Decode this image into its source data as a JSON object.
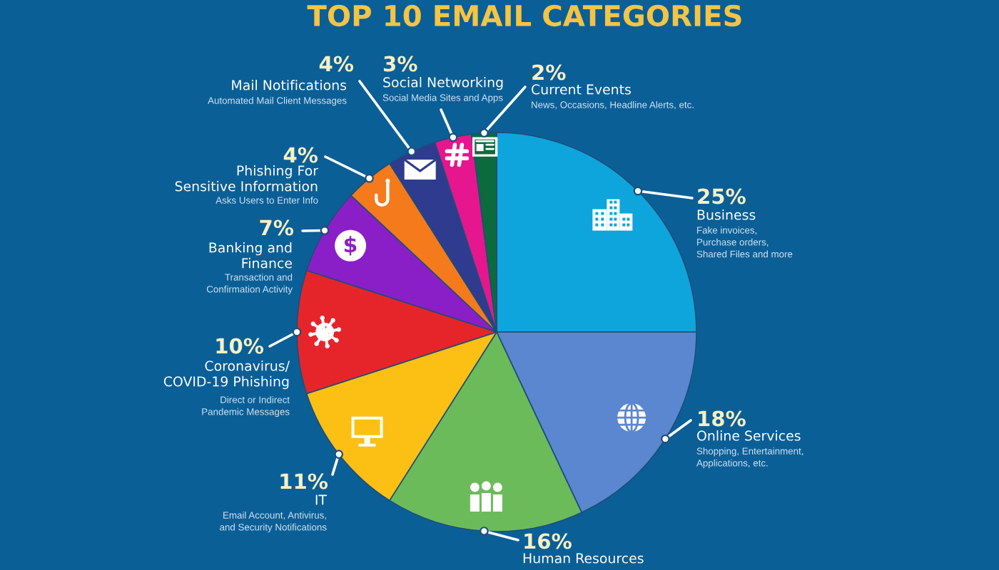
{
  "chart_data": {
    "type": "pie",
    "title": "TOP 10 EMAIL CATEGORIES",
    "categories": [
      "Business",
      "Online Services",
      "Human Resources",
      "IT",
      "Coronavirus/\nCOVID-19 Phishing",
      "Banking and\nFinance",
      "Phishing For\nSensitive Information",
      "Mail Notifications",
      "Social Networking",
      "Current Events"
    ],
    "values": [
      25,
      18,
      16,
      11,
      10,
      7,
      4,
      4,
      3,
      2
    ],
    "value_labels": [
      "25%",
      "18%",
      "16%",
      "11%",
      "10%",
      "7%",
      "4%",
      "4%",
      "3%",
      "2%"
    ],
    "colors": [
      "#0ea5dd",
      "#5a87d0",
      "#6cbb5b",
      "#fcc015",
      "#e6252b",
      "#8a1fc8",
      "#f57a1c",
      "#2e3b8f",
      "#e5168e",
      "#0b6b3c"
    ],
    "annotations": [
      "Fake invoices,\nPurchase orders,\nShared Files and more",
      "Shopping, Entertainment,\nApplications, etc.",
      "Email Account, Antivirus,\nand Security Notifications",
      "Direct or Indirect\nPandemic Messages",
      "Transaction and\nConfirmation Activity",
      "Asks Users to Enter Info",
      "Automated Mail Client Messages",
      "Social Media Sites and Apps",
      "News, Occasions, Headline Alerts, etc."
    ]
  }
}
